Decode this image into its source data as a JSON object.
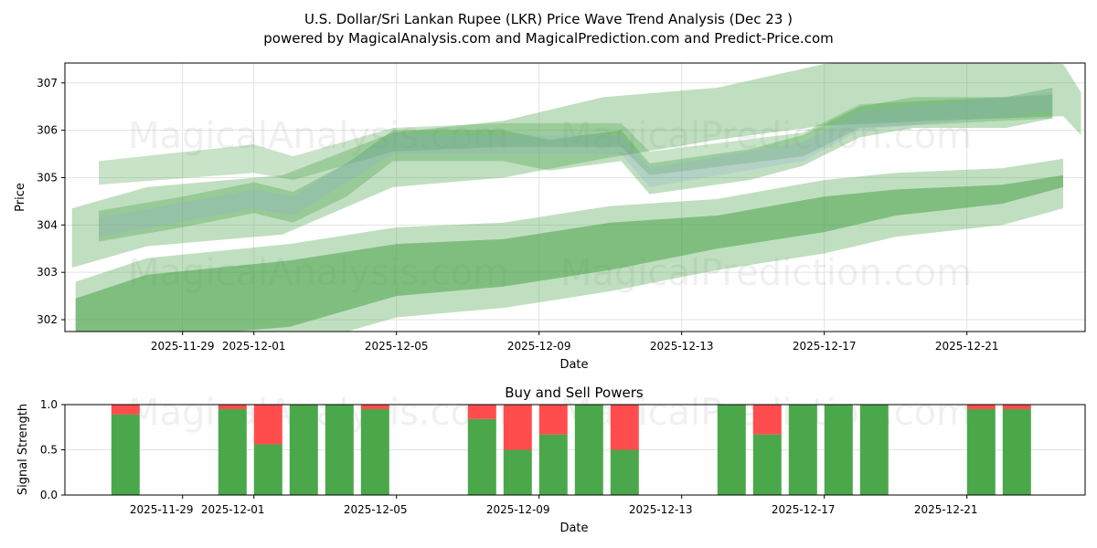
{
  "title_line1": "U.S. Dollar/Sri Lankan Rupee (LKR) Price Wave Trend Analysis (Dec 23 )",
  "title_line2": "powered by MagicalAnalysis.com and MagicalPrediction.com and Predict-Price.com",
  "watermarks": [
    "MagicalAnalysis.com",
    "MagicalPrediction.com"
  ],
  "colors": {
    "band": "#4aa34a",
    "band_blue": "#8fa8d8",
    "buy": "#4aa84a",
    "sell": "#ff4d4d"
  },
  "chart_data": [
    {
      "type": "area",
      "title": "",
      "xlabel": "Date",
      "ylabel": "Price",
      "x_unit": "days since 2025-11-26",
      "xlim": [
        -0.3,
        28.3
      ],
      "ylim": [
        301.75,
        307.42
      ],
      "yticks": [
        302,
        303,
        304,
        305,
        306,
        307
      ],
      "xticks": [
        {
          "d": 3,
          "label": "2025-11-29"
        },
        {
          "d": 5,
          "label": "2025-12-01"
        },
        {
          "d": 9,
          "label": "2025-12-05"
        },
        {
          "d": 13,
          "label": "2025-12-09"
        },
        {
          "d": 17,
          "label": "2025-12-13"
        },
        {
          "d": 21,
          "label": "2025-12-17"
        },
        {
          "d": 25,
          "label": "2025-12-21"
        }
      ],
      "grid": true,
      "bands": [
        {
          "name": "lower-outer",
          "opacity": 0.35,
          "points": [
            [
              0,
              301.05,
              302.8
            ],
            [
              2,
              301.15,
              303.3
            ],
            [
              6,
              301.4,
              303.6
            ],
            [
              9,
              302.05,
              303.95
            ],
            [
              12,
              302.25,
              304.05
            ],
            [
              15,
              302.6,
              304.4
            ],
            [
              18,
              303.05,
              304.55
            ],
            [
              21,
              303.4,
              304.95
            ],
            [
              23,
              303.75,
              305.1
            ],
            [
              26,
              304.0,
              305.2
            ],
            [
              27.7,
              304.35,
              305.4
            ]
          ]
        },
        {
          "name": "lower-core",
          "opacity": 0.55,
          "points": [
            [
              0,
              301.5,
              302.45
            ],
            [
              2,
              301.6,
              302.95
            ],
            [
              6,
              301.85,
              303.25
            ],
            [
              9,
              302.5,
              303.6
            ],
            [
              12,
              302.7,
              303.7
            ],
            [
              15,
              303.05,
              304.05
            ],
            [
              18,
              303.5,
              304.2
            ],
            [
              21,
              303.85,
              304.6
            ],
            [
              23,
              304.2,
              304.75
            ],
            [
              26,
              304.45,
              304.85
            ],
            [
              27.7,
              304.8,
              305.05
            ]
          ]
        },
        {
          "name": "upper-wide",
          "opacity": 0.35,
          "points": [
            [
              -0.1,
              303.1,
              304.35
            ],
            [
              2,
              303.55,
              304.8
            ],
            [
              5.8,
              303.8,
              305.05
            ],
            [
              8.9,
              304.8,
              305.95
            ],
            [
              12,
              305.0,
              306.2
            ],
            [
              14.8,
              305.4,
              306.7
            ],
            [
              18,
              305.8,
              306.9
            ],
            [
              21,
              306.1,
              307.4
            ],
            [
              24,
              306.2,
              307.5
            ],
            [
              27.7,
              306.3,
              307.4
            ],
            [
              28.2,
              305.9,
              306.8
            ]
          ]
        },
        {
          "name": "mid-top",
          "opacity": 0.3,
          "points": [
            [
              0.65,
              304.85,
              305.35
            ],
            [
              5,
              305.1,
              305.7
            ],
            [
              6.1,
              304.95,
              305.45
            ],
            [
              8.9,
              305.55,
              306.05
            ],
            [
              12,
              305.65,
              306.15
            ],
            [
              15.3,
              305.65,
              306.15
            ],
            [
              16.1,
              305.05,
              305.55
            ],
            [
              20.4,
              305.45,
              305.95
            ],
            [
              22,
              306.05,
              306.55
            ],
            [
              27.4,
              306.25,
              306.75
            ]
          ]
        },
        {
          "name": "mid-main",
          "opacity": 0.35,
          "points": [
            [
              0.65,
              303.65,
              304.3
            ],
            [
              3,
              303.95,
              304.6
            ],
            [
              5,
              304.25,
              304.9
            ],
            [
              6.1,
              304.05,
              304.7
            ],
            [
              7.6,
              304.6,
              305.3
            ],
            [
              8.9,
              305.35,
              306.0
            ],
            [
              12,
              305.35,
              306.0
            ],
            [
              13.3,
              305.15,
              305.8
            ],
            [
              15.3,
              305.35,
              306.0
            ],
            [
              16.1,
              304.65,
              305.3
            ],
            [
              18.9,
              304.95,
              305.6
            ],
            [
              20.4,
              305.25,
              305.9
            ],
            [
              22,
              305.85,
              306.5
            ],
            [
              23.5,
              306.05,
              306.7
            ],
            [
              26.1,
              306.05,
              306.7
            ],
            [
              27.4,
              306.25,
              306.9
            ]
          ]
        },
        {
          "name": "mid-blue",
          "opacity": 0.25,
          "blue": true,
          "points": [
            [
              0.65,
              303.75,
              304.15
            ],
            [
              5,
              304.35,
              304.75
            ],
            [
              6.1,
              304.2,
              304.6
            ],
            [
              8.9,
              305.5,
              305.9
            ],
            [
              12,
              305.5,
              305.9
            ],
            [
              15.3,
              305.5,
              305.9
            ],
            [
              16.1,
              304.8,
              305.2
            ],
            [
              20.4,
              305.35,
              305.75
            ],
            [
              22,
              306.0,
              306.4
            ],
            [
              27.4,
              306.4,
              306.8
            ]
          ]
        }
      ]
    },
    {
      "type": "bar",
      "title": "Buy and Sell Powers",
      "xlabel": "Date",
      "ylabel": "Signal Strength",
      "ylim": [
        0,
        1
      ],
      "yticks": [
        {
          "v": 0,
          "label": "0.0"
        },
        {
          "v": 0.5,
          "label": "0.5"
        },
        {
          "v": 1,
          "label": "1.0"
        }
      ],
      "xticks": [
        {
          "d": 3,
          "label": "2025-11-29"
        },
        {
          "d": 5,
          "label": "2025-12-01"
        },
        {
          "d": 9,
          "label": "2025-12-05"
        },
        {
          "d": 13,
          "label": "2025-12-09"
        },
        {
          "d": 17,
          "label": "2025-12-13"
        },
        {
          "d": 21,
          "label": "2025-12-17"
        },
        {
          "d": 25,
          "label": "2025-12-21"
        }
      ],
      "categories": [
        "2025-11-27",
        "2025-11-30",
        "2025-12-01",
        "2025-12-02",
        "2025-12-03",
        "2025-12-04",
        "2025-12-07",
        "2025-12-08",
        "2025-12-09",
        "2025-12-10",
        "2025-12-11",
        "2025-12-14",
        "2025-12-15",
        "2025-12-16",
        "2025-12-17",
        "2025-12-18",
        "2025-12-21",
        "2025-12-22"
      ],
      "day_index": [
        1,
        4,
        5,
        6,
        7,
        8,
        11,
        12,
        13,
        14,
        15,
        18,
        19,
        20,
        21,
        22,
        25,
        26
      ],
      "series": [
        {
          "name": "Buy",
          "values": [
            0.89,
            0.95,
            0.56,
            1,
            1,
            0.95,
            0.84,
            0.5,
            0.67,
            1,
            0.5,
            1,
            0.67,
            1,
            1,
            1,
            0.95,
            0.95
          ]
        },
        {
          "name": "Sell",
          "values": [
            0.11,
            0.05,
            0.44,
            0,
            0,
            0.05,
            0.16,
            0.5,
            0.33,
            0,
            0.5,
            0,
            0.33,
            0,
            0,
            0,
            0.05,
            0.05
          ]
        }
      ]
    }
  ]
}
